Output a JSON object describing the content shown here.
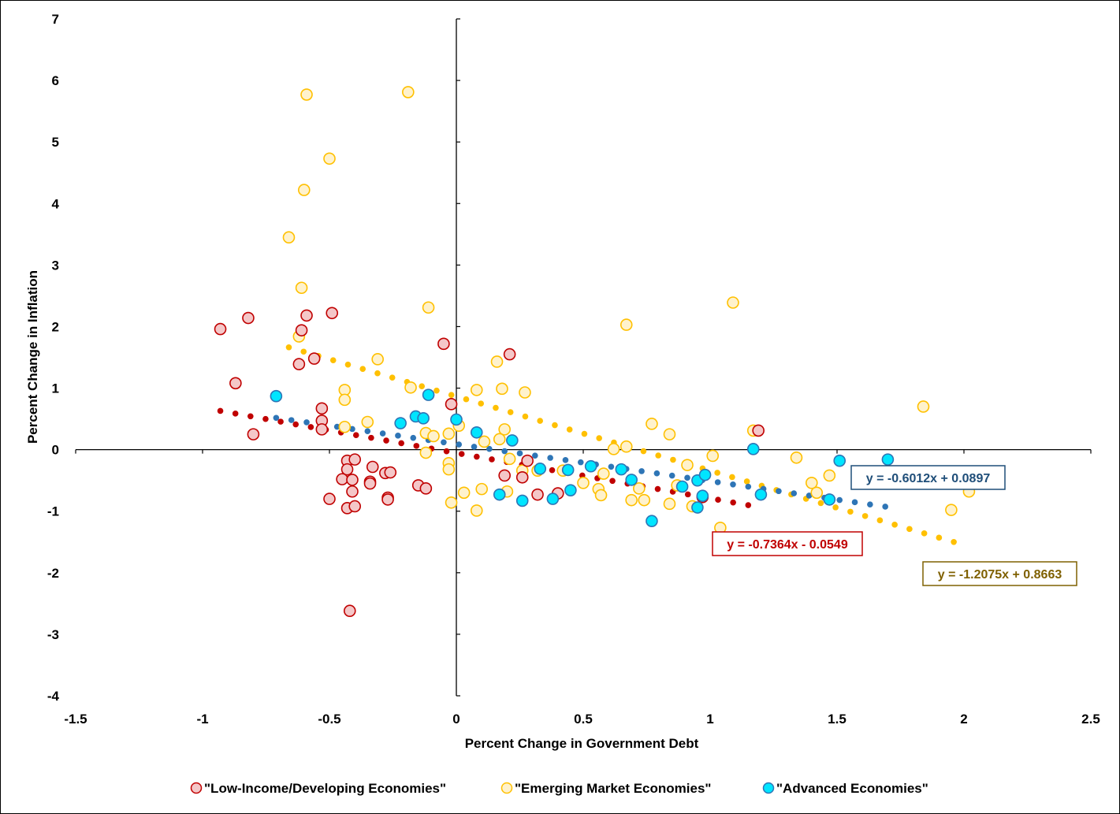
{
  "chart_data": {
    "type": "scatter",
    "xlabel": "Percent Change in Government Debt",
    "ylabel": "Percent Change in Inflation",
    "xlim": [
      -1.5,
      2.5
    ],
    "ylim": [
      -4,
      7
    ],
    "x_ticks": [
      -1.5,
      -1,
      -0.5,
      0,
      0.5,
      1,
      1.5,
      2,
      2.5
    ],
    "y_ticks": [
      -4,
      -3,
      -2,
      -1,
      0,
      1,
      2,
      3,
      4,
      5,
      6,
      7
    ],
    "x_tick_labels": [
      "-1.5",
      "-1",
      "-0.5",
      "0",
      "0.5",
      "1",
      "1.5",
      "2",
      "2.5"
    ],
    "y_tick_labels": [
      "-4",
      "-3",
      "-2",
      "-1",
      "0",
      "1",
      "2",
      "3",
      "4",
      "5",
      "6",
      "7"
    ],
    "grid": false,
    "legend_position": "bottom",
    "series": [
      {
        "name": "\"Low-Income/Developing Economies\"",
        "marker_fill": "#f4c7c8",
        "marker_stroke": "#c00000",
        "trend_color": "#c00000",
        "trend": {
          "slope": -0.7364,
          "intercept": -0.0549,
          "x_range": [
            -0.93,
            1.15
          ]
        },
        "equation": "y = -0.7364x - 0.0549",
        "points": [
          [
            -0.93,
            1.96
          ],
          [
            -0.82,
            2.14
          ],
          [
            -0.87,
            1.08
          ],
          [
            -0.8,
            0.25
          ],
          [
            -0.61,
            1.94
          ],
          [
            -0.59,
            2.18
          ],
          [
            -0.49,
            2.22
          ],
          [
            -0.56,
            1.48
          ],
          [
            -0.62,
            1.39
          ],
          [
            -0.53,
            0.67
          ],
          [
            -0.53,
            0.47
          ],
          [
            -0.53,
            0.33
          ],
          [
            -0.05,
            1.72
          ],
          [
            0.21,
            1.55
          ],
          [
            -0.02,
            0.74
          ],
          [
            1.19,
            0.31
          ],
          [
            -0.43,
            -0.18
          ],
          [
            -0.4,
            -0.16
          ],
          [
            -0.43,
            -0.32
          ],
          [
            -0.33,
            -0.28
          ],
          [
            -0.45,
            -0.48
          ],
          [
            -0.41,
            -0.49
          ],
          [
            -0.34,
            -0.52
          ],
          [
            -0.34,
            -0.55
          ],
          [
            -0.28,
            -0.38
          ],
          [
            -0.26,
            -0.37
          ],
          [
            -0.5,
            -0.8
          ],
          [
            -0.41,
            -0.68
          ],
          [
            -0.27,
            -0.78
          ],
          [
            -0.27,
            -0.81
          ],
          [
            -0.15,
            -0.58
          ],
          [
            -0.12,
            -0.63
          ],
          [
            -0.43,
            -0.95
          ],
          [
            -0.4,
            -0.92
          ],
          [
            -0.42,
            -2.62
          ],
          [
            0.19,
            -0.42
          ],
          [
            0.26,
            -0.45
          ],
          [
            0.28,
            -0.18
          ],
          [
            0.32,
            -0.73
          ],
          [
            0.4,
            -0.71
          ],
          [
            0.97,
            -0.77
          ]
        ]
      },
      {
        "name": "\"Emerging Market Economies\"",
        "marker_fill": "#fff2cc",
        "marker_stroke": "#ffc000",
        "trend_color": "#ffc000",
        "trend": {
          "slope": -1.2075,
          "intercept": 0.8663,
          "x_range": [
            -0.66,
            1.96
          ]
        },
        "equation": "y = -1.2075x + 0.8663",
        "points": [
          [
            -0.59,
            5.77
          ],
          [
            -0.19,
            5.81
          ],
          [
            -0.5,
            4.73
          ],
          [
            -0.6,
            4.22
          ],
          [
            -0.66,
            3.45
          ],
          [
            -0.61,
            2.63
          ],
          [
            -0.11,
            2.31
          ],
          [
            -0.62,
            1.84
          ],
          [
            -0.31,
            1.47
          ],
          [
            -0.44,
            0.97
          ],
          [
            -0.44,
            0.81
          ],
          [
            -0.18,
            1.01
          ],
          [
            -0.35,
            0.45
          ],
          [
            -0.44,
            0.37
          ],
          [
            -0.12,
            0.27
          ],
          [
            -0.09,
            0.22
          ],
          [
            -0.03,
            0.26
          ],
          [
            0.01,
            0.39
          ],
          [
            -0.12,
            -0.05
          ],
          [
            -0.03,
            -0.22
          ],
          [
            -0.03,
            -0.32
          ],
          [
            -0.02,
            -0.86
          ],
          [
            0.03,
            -0.7
          ],
          [
            0.1,
            -0.64
          ],
          [
            0.08,
            -0.99
          ],
          [
            0.16,
            1.43
          ],
          [
            0.18,
            0.99
          ],
          [
            0.27,
            0.93
          ],
          [
            0.08,
            0.97
          ],
          [
            0.19,
            0.33
          ],
          [
            0.17,
            0.17
          ],
          [
            0.11,
            0.13
          ],
          [
            0.21,
            -0.15
          ],
          [
            0.26,
            -0.34
          ],
          [
            0.2,
            -0.68
          ],
          [
            0.32,
            -0.34
          ],
          [
            0.42,
            -0.34
          ],
          [
            0.5,
            -0.54
          ],
          [
            0.56,
            -0.64
          ],
          [
            0.57,
            -0.74
          ],
          [
            0.58,
            -0.39
          ],
          [
            0.62,
            0.01
          ],
          [
            0.67,
            0.05
          ],
          [
            0.69,
            -0.82
          ],
          [
            0.72,
            -0.63
          ],
          [
            0.74,
            -0.82
          ],
          [
            0.77,
            0.42
          ],
          [
            0.84,
            0.25
          ],
          [
            0.84,
            -0.88
          ],
          [
            0.87,
            -0.58
          ],
          [
            0.91,
            -0.25
          ],
          [
            0.93,
            -0.92
          ],
          [
            0.67,
            2.03
          ],
          [
            1.09,
            2.39
          ],
          [
            1.01,
            -0.1
          ],
          [
            1.04,
            -1.27
          ],
          [
            1.17,
            0.31
          ],
          [
            1.34,
            -0.13
          ],
          [
            1.4,
            -0.54
          ],
          [
            1.42,
            -0.7
          ],
          [
            1.47,
            -0.42
          ],
          [
            1.84,
            0.7
          ],
          [
            1.95,
            -0.98
          ],
          [
            2.02,
            -0.68
          ]
        ]
      },
      {
        "name": "\"Advanced Economies\"",
        "marker_fill": "#00e5ff",
        "marker_stroke": "#2e75b6",
        "trend_color": "#2e75b6",
        "trend": {
          "slope": -0.6012,
          "intercept": 0.0897,
          "x_range": [
            -0.71,
            1.69
          ]
        },
        "equation": "y = -0.6012x + 0.0897",
        "points": [
          [
            -0.71,
            0.87
          ],
          [
            -0.11,
            0.89
          ],
          [
            -0.22,
            0.43
          ],
          [
            -0.16,
            0.54
          ],
          [
            -0.13,
            0.51
          ],
          [
            0.0,
            0.49
          ],
          [
            0.08,
            0.28
          ],
          [
            0.22,
            0.15
          ],
          [
            0.17,
            -0.73
          ],
          [
            0.26,
            -0.83
          ],
          [
            0.33,
            -0.31
          ],
          [
            0.38,
            -0.8
          ],
          [
            0.44,
            -0.33
          ],
          [
            0.45,
            -0.66
          ],
          [
            0.53,
            -0.27
          ],
          [
            0.65,
            -0.32
          ],
          [
            0.69,
            -0.49
          ],
          [
            0.77,
            -1.16
          ],
          [
            0.89,
            -0.6
          ],
          [
            0.95,
            -0.5
          ],
          [
            0.95,
            -0.94
          ],
          [
            0.98,
            -0.41
          ],
          [
            0.97,
            -0.75
          ],
          [
            1.17,
            0.01
          ],
          [
            1.2,
            -0.73
          ],
          [
            1.47,
            -0.81
          ],
          [
            1.51,
            -0.18
          ],
          [
            1.7,
            -0.16
          ]
        ]
      }
    ]
  }
}
